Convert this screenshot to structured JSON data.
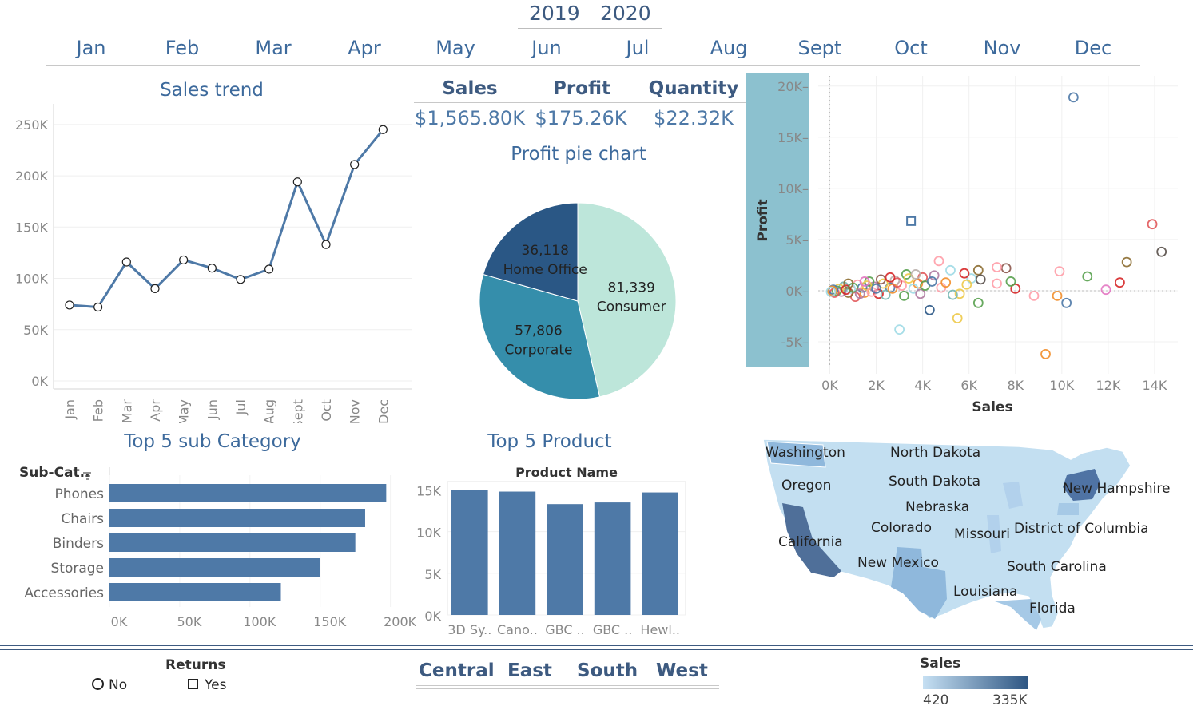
{
  "years": [
    "2019",
    "2020"
  ],
  "months": [
    "Jan",
    "Feb",
    "Mar",
    "Apr",
    "May",
    "Jun",
    "Jul",
    "Aug",
    "Sept",
    "Oct",
    "Nov",
    "Dec"
  ],
  "kpis": {
    "sales_label": "Sales",
    "sales_value": "$1,565.80K",
    "profit_label": "Profit",
    "profit_value": "$175.26K",
    "quantity_label": "Quantity",
    "quantity_value": "$22.32K"
  },
  "colors": {
    "primary": "#4e79a7",
    "title": "#3d6a9c",
    "scatter_bg": "#8cc1cf"
  },
  "chart_data": [
    {
      "id": "sales_trend",
      "type": "line",
      "title": "Sales trend",
      "categories": [
        "Jan",
        "Feb",
        "Mar",
        "Apr",
        "May",
        "Jun",
        "Jul",
        "Aug",
        "Sept",
        "Oct",
        "Nov",
        "Dec"
      ],
      "values": [
        74000,
        72000,
        116000,
        90000,
        118000,
        110000,
        99000,
        109000,
        194000,
        133000,
        211000,
        245000
      ],
      "ylim": [
        0,
        260000
      ],
      "yticks": [
        "0K",
        "50K",
        "100K",
        "150K",
        "200K",
        "250K"
      ],
      "ytick_values": [
        0,
        50000,
        100000,
        150000,
        200000,
        250000
      ]
    },
    {
      "id": "profit_pie",
      "type": "pie",
      "title": "Profit pie chart",
      "slices": [
        {
          "label": "Consumer",
          "value": 81339,
          "value_text": "81,339",
          "color": "#bde6da"
        },
        {
          "label": "Corporate",
          "value": 57806,
          "value_text": "57,806",
          "color": "#358eab"
        },
        {
          "label": "Home Office",
          "value": 36118,
          "value_text": "36,118",
          "color": "#2a5785"
        }
      ]
    },
    {
      "id": "profit_scatter",
      "type": "scatter",
      "xlabel": "Sales",
      "ylabel": "Profit",
      "xlim": [
        -500,
        15000
      ],
      "ylim": [
        -7500,
        21000
      ],
      "xticks": [
        "0K",
        "2K",
        "4K",
        "6K",
        "8K",
        "10K",
        "12K",
        "14K"
      ],
      "xtick_values": [
        0,
        2000,
        4000,
        6000,
        8000,
        10000,
        12000,
        14000
      ],
      "yticks": [
        "-5K",
        "0K",
        "5K",
        "10K",
        "15K",
        "20K"
      ],
      "ytick_values": [
        -5000,
        0,
        5000,
        10000,
        15000,
        20000
      ],
      "points": [
        {
          "x": 10500,
          "y": 18900,
          "ret": "No",
          "c": "#4e79a7"
        },
        {
          "x": 3500,
          "y": 6800,
          "ret": "Yes",
          "c": "#4e79a7"
        },
        {
          "x": 13900,
          "y": 6500,
          "ret": "No",
          "c": "#e15759"
        },
        {
          "x": 14300,
          "y": 3800,
          "ret": "No",
          "c": "#59504a"
        },
        {
          "x": 12800,
          "y": 2800,
          "ret": "No",
          "c": "#8c6d31"
        },
        {
          "x": 11100,
          "y": 1400,
          "ret": "No",
          "c": "#59a14f"
        },
        {
          "x": 12500,
          "y": 800,
          "ret": "No",
          "c": "#d62728"
        },
        {
          "x": 11900,
          "y": 100,
          "ret": "No",
          "c": "#e377c2"
        },
        {
          "x": 9900,
          "y": 1900,
          "ret": "No",
          "c": "#ff9da7"
        },
        {
          "x": 10200,
          "y": -1200,
          "ret": "No",
          "c": "#4e79a7"
        },
        {
          "x": 9800,
          "y": -500,
          "ret": "No",
          "c": "#f28e2b"
        },
        {
          "x": 9300,
          "y": -6200,
          "ret": "No",
          "c": "#f28e2b"
        },
        {
          "x": 8800,
          "y": -500,
          "ret": "No",
          "c": "#ff9da7"
        },
        {
          "x": 8000,
          "y": 200,
          "ret": "No",
          "c": "#d62728"
        },
        {
          "x": 7800,
          "y": 900,
          "ret": "No",
          "c": "#59a14f"
        },
        {
          "x": 7600,
          "y": 2200,
          "ret": "No",
          "c": "#8c564b"
        },
        {
          "x": 7200,
          "y": 2300,
          "ret": "No",
          "c": "#ff9da7"
        },
        {
          "x": 7200,
          "y": 700,
          "ret": "No",
          "c": "#ff9da7"
        },
        {
          "x": 6400,
          "y": 2000,
          "ret": "No",
          "c": "#8c6d31"
        },
        {
          "x": 6500,
          "y": 1100,
          "ret": "No",
          "c": "#59504a"
        },
        {
          "x": 6400,
          "y": -1200,
          "ret": "No",
          "c": "#59a14f"
        },
        {
          "x": 5500,
          "y": -2700,
          "ret": "No",
          "c": "#edc948"
        },
        {
          "x": 5600,
          "y": -300,
          "ret": "No",
          "c": "#edc948"
        },
        {
          "x": 6100,
          "y": 1200,
          "ret": "No",
          "c": "#9edae5"
        },
        {
          "x": 5800,
          "y": 1700,
          "ret": "No",
          "c": "#d62728"
        },
        {
          "x": 4300,
          "y": -1900,
          "ret": "No",
          "c": "#2a5785"
        },
        {
          "x": 3000,
          "y": -3800,
          "ret": "No",
          "c": "#9edae5"
        },
        {
          "x": 4700,
          "y": 2900,
          "ret": "No",
          "c": "#ff9da7"
        },
        {
          "x": 4500,
          "y": 1500,
          "ret": "No",
          "c": "#b07aa1"
        },
        {
          "x": 5200,
          "y": 2000,
          "ret": "No",
          "c": "#9edae5"
        },
        {
          "x": 4000,
          "y": 1300,
          "ret": "No",
          "c": "#e15759"
        },
        {
          "x": 3800,
          "y": 700,
          "ret": "No",
          "c": "#f28e2b"
        },
        {
          "x": 3300,
          "y": 1600,
          "ret": "No",
          "c": "#59a14f"
        },
        {
          "x": 3100,
          "y": 500,
          "ret": "No",
          "c": "#ff9da7"
        },
        {
          "x": 2800,
          "y": 1000,
          "ret": "No",
          "c": "#bab0ac"
        },
        {
          "x": 2600,
          "y": 300,
          "ret": "No",
          "c": "#4e79a7"
        },
        {
          "x": 2300,
          "y": 700,
          "ret": "No",
          "c": "#edc948"
        },
        {
          "x": 2100,
          "y": -300,
          "ret": "No",
          "c": "#d62728"
        },
        {
          "x": 1900,
          "y": 400,
          "ret": "No",
          "c": "#b07aa1"
        },
        {
          "x": 1700,
          "y": 900,
          "ret": "No",
          "c": "#59a14f"
        },
        {
          "x": 1500,
          "y": -200,
          "ret": "No",
          "c": "#f28e2b"
        },
        {
          "x": 1400,
          "y": 300,
          "ret": "No",
          "c": "#4e79a7"
        },
        {
          "x": 1200,
          "y": 600,
          "ret": "No",
          "c": "#ff9da7"
        },
        {
          "x": 1100,
          "y": -600,
          "ret": "No",
          "c": "#e15759"
        },
        {
          "x": 900,
          "y": 200,
          "ret": "No",
          "c": "#9edae5"
        },
        {
          "x": 800,
          "y": -200,
          "ret": "No",
          "c": "#8c6d31"
        },
        {
          "x": 600,
          "y": 400,
          "ret": "No",
          "c": "#76b7b2"
        },
        {
          "x": 500,
          "y": -100,
          "ret": "No",
          "c": "#b07aa1"
        },
        {
          "x": 400,
          "y": 200,
          "ret": "No",
          "c": "#edc948"
        },
        {
          "x": 300,
          "y": 0,
          "ret": "No",
          "c": "#59a14f"
        },
        {
          "x": 200,
          "y": -200,
          "ret": "No",
          "c": "#e15759"
        },
        {
          "x": 150,
          "y": 100,
          "ret": "No",
          "c": "#4e79a7"
        },
        {
          "x": 100,
          "y": 0,
          "ret": "No",
          "c": "#f28e2b"
        },
        {
          "x": 50,
          "y": -100,
          "ret": "No",
          "c": "#9edae5"
        },
        {
          "x": 700,
          "y": 100,
          "ret": "No",
          "c": "#d62728"
        },
        {
          "x": 1000,
          "y": 300,
          "ret": "No",
          "c": "#59a14f"
        },
        {
          "x": 1300,
          "y": -300,
          "ret": "No",
          "c": "#b07aa1"
        },
        {
          "x": 1600,
          "y": 500,
          "ret": "No",
          "c": "#edc948"
        },
        {
          "x": 1800,
          "y": -100,
          "ret": "No",
          "c": "#ff9da7"
        },
        {
          "x": 2000,
          "y": 200,
          "ret": "No",
          "c": "#4e79a7"
        },
        {
          "x": 2200,
          "y": 1100,
          "ret": "No",
          "c": "#8c564b"
        },
        {
          "x": 2400,
          "y": -400,
          "ret": "No",
          "c": "#76b7b2"
        },
        {
          "x": 2700,
          "y": 200,
          "ret": "No",
          "c": "#f28e2b"
        },
        {
          "x": 2900,
          "y": 800,
          "ret": "No",
          "c": "#e15759"
        },
        {
          "x": 3200,
          "y": -500,
          "ret": "No",
          "c": "#59a14f"
        },
        {
          "x": 3400,
          "y": 1200,
          "ret": "No",
          "c": "#edc948"
        },
        {
          "x": 3600,
          "y": 200,
          "ret": "No",
          "c": "#9edae5"
        },
        {
          "x": 3900,
          "y": -300,
          "ret": "No",
          "c": "#b07aa1"
        },
        {
          "x": 4100,
          "y": 500,
          "ret": "No",
          "c": "#59a14f"
        },
        {
          "x": 4400,
          "y": 900,
          "ret": "No",
          "c": "#4e79a7"
        },
        {
          "x": 4800,
          "y": 300,
          "ret": "No",
          "c": "#ff9da7"
        },
        {
          "x": 5000,
          "y": 800,
          "ret": "No",
          "c": "#f28e2b"
        },
        {
          "x": 5300,
          "y": -400,
          "ret": "No",
          "c": "#76b7b2"
        },
        {
          "x": 5900,
          "y": 600,
          "ret": "No",
          "c": "#edc948"
        },
        {
          "x": 800,
          "y": 700,
          "ret": "No",
          "c": "#8c6d31"
        },
        {
          "x": 1500,
          "y": 900,
          "ret": "No",
          "c": "#e377c2"
        },
        {
          "x": 2600,
          "y": 1300,
          "ret": "No",
          "c": "#d62728"
        },
        {
          "x": 3700,
          "y": 1600,
          "ret": "No",
          "c": "#bab0ac"
        }
      ]
    },
    {
      "id": "top5_subcategory",
      "type": "bar",
      "title": "Top 5 sub Category",
      "axis_header": "Sub-Cat..",
      "categories": [
        "Phones",
        "Chairs",
        "Binders",
        "Storage",
        "Accessories"
      ],
      "values": [
        197000,
        182000,
        175000,
        150000,
        122000
      ],
      "xlim": [
        0,
        215000
      ],
      "xticks": [
        "0K",
        "50K",
        "100K",
        "150K",
        "200K"
      ],
      "xtick_values": [
        0,
        50000,
        100000,
        150000,
        200000
      ]
    },
    {
      "id": "top5_product",
      "type": "bar",
      "title": "Top 5 Product",
      "axis_header": "Product Name",
      "categories": [
        "3D Sy..",
        "Cano..",
        "GBC ..",
        "GBC ..",
        "Hewl.."
      ],
      "values": [
        15000,
        14800,
        13300,
        13500,
        14700
      ],
      "ylim": [
        0,
        16000
      ],
      "yticks": [
        "0K",
        "5K",
        "10K",
        "15K"
      ],
      "ytick_values": [
        0,
        5000,
        10000,
        15000
      ]
    }
  ],
  "map": {
    "state_labels": [
      "Washington",
      "North Dakota",
      "Oregon",
      "South Dakota",
      "New Hampshire",
      "Nebraska",
      "Colorado",
      "Missouri",
      "District of Columbia",
      "California",
      "New Mexico",
      "South Carolina",
      "Louisiana",
      "Florida"
    ]
  },
  "legend_returns": {
    "title": "Returns",
    "no_label": "No",
    "yes_label": "Yes"
  },
  "regions": [
    "Central",
    "East",
    "South",
    "West"
  ],
  "sales_legend": {
    "title": "Sales",
    "min_label": "420",
    "max_label": "335K",
    "min_color": "#c6e0f3",
    "max_color": "#2d5582"
  }
}
